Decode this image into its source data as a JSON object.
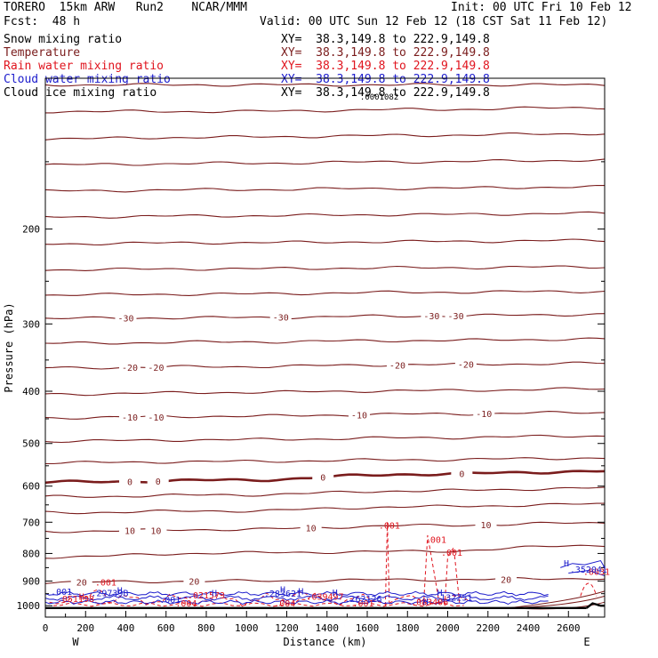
{
  "header": {
    "model": "TORERO  15km ARW   Run2    NCAR/MMM",
    "init": "Init: 00 UTC Fri 10 Feb 12",
    "fcst": "Fcst:  48 h",
    "valid": "Valid: 00 UTC Sun 12 Feb 12 (18 CST Sat 11 Feb 12)"
  },
  "fields": [
    {
      "name": "Snow mixing ratio",
      "xy": "XY=  38.3,149.8 to 222.9,149.8",
      "color": "#000000"
    },
    {
      "name": "Temperature",
      "xy": "XY=  38.3,149.8 to 222.9,149.8",
      "color": "#7a1c1c"
    },
    {
      "name": "Rain water mixing ratio",
      "xy": "XY=  38.3,149.8 to 222.9,149.8",
      "color": "#e0141e"
    },
    {
      "name": "Cloud water mixing ratio",
      "xy": "XY=  38.3,149.8 to 222.9,149.8",
      "color": "#1c1ccc"
    },
    {
      "name": "Cloud ice mixing ratio",
      "xy": "XY=  38.3,149.8 to 222.9,149.8",
      "color": "#000000"
    }
  ],
  "chart_data": {
    "type": "contour-cross-section",
    "xlabel": "Distance (km)",
    "ylabel": "Pressure (hPa)",
    "xlim": [
      0,
      2780
    ],
    "ylim": [
      1050,
      105
    ],
    "y_log": true,
    "x_ticks": [
      0,
      200,
      400,
      600,
      800,
      1000,
      1200,
      1400,
      1600,
      1800,
      2000,
      2200,
      2400,
      2600
    ],
    "y_ticks": [
      200,
      300,
      400,
      500,
      600,
      700,
      800,
      900,
      1000
    ],
    "x_end_labels": [
      "W",
      "E"
    ],
    "isotherms": [
      {
        "p": [
          108,
          108,
          108,
          108
        ]
      },
      {
        "p": [
          121,
          121,
          120,
          119
        ]
      },
      {
        "p": [
          136,
          135,
          134,
          133
        ]
      },
      {
        "p": [
          152,
          151,
          150,
          149
        ]
      },
      {
        "p": [
          170,
          169,
          168,
          167
        ]
      },
      {
        "p": [
          190,
          189,
          188,
          187
        ]
      },
      {
        "p": [
          213,
          212,
          211,
          210
        ]
      },
      {
        "p": [
          238,
          237,
          236,
          235
        ]
      },
      {
        "p": [
          265,
          264,
          262,
          261
        ]
      },
      {
        "p": [
          293,
          292,
          290,
          288
        ],
        "label": "-30",
        "label_x": [
          400,
          1170,
          1920,
          2040
        ]
      },
      {
        "p": [
          326,
          324,
          322,
          320
        ]
      },
      {
        "p": [
          362,
          360,
          357,
          355
        ],
        "label": "-20",
        "label_x": [
          420,
          550,
          1750,
          2090
        ]
      },
      {
        "p": [
          405,
          402,
          399,
          396
        ]
      },
      {
        "p": [
          448,
          445,
          441,
          438
        ],
        "label": "-10",
        "label_x": [
          420,
          550,
          1560,
          2180
        ]
      },
      {
        "p": [
          495,
          492,
          488,
          484
        ]
      },
      {
        "p": [
          543,
          540,
          536,
          532
        ]
      },
      {
        "p": [
          590,
          585,
          570,
          563
        ],
        "label": "0",
        "label_x": [
          420,
          560,
          1380,
          2070
        ],
        "bold": true
      },
      {
        "p": [
          628,
          623,
          612,
          605
        ]
      },
      {
        "p": [
          672,
          667,
          655,
          648
        ]
      },
      {
        "p": [
          728,
          722,
          710,
          702
        ],
        "label": "10",
        "label_x": [
          420,
          550,
          1320,
          2190
        ]
      },
      {
        "p": [
          812,
          798,
          793,
          772
        ]
      },
      {
        "p": [
          905,
          900,
          895,
          890
        ],
        "label": "20",
        "label_x": [
          180,
          740,
          2290
        ]
      }
    ],
    "rain_labels": [
      {
        "x": 1710,
        "p": 720,
        "text": ".001"
      },
      {
        "x": 1940,
        "p": 765,
        "text": ".001"
      },
      {
        "x": 2020,
        "p": 808,
        "text": ".001"
      },
      {
        "x": 300,
        "p": 918,
        "text": ".001"
      },
      {
        "x": 150,
        "p": 985,
        "text": ".051198"
      },
      {
        "x": 800,
        "p": 970,
        "text": ".021573"
      },
      {
        "x": 700,
        "p": 1003,
        "text": ".004"
      },
      {
        "x": 1390,
        "p": 975,
        "text": ".039497"
      },
      {
        "x": 1190,
        "p": 1003,
        "text": ".004"
      },
      {
        "x": 1580,
        "p": 1003,
        "text": ".001"
      },
      {
        "x": 1910,
        "p": 998,
        "text": ".083406"
      },
      {
        "x": 2740,
        "p": 876,
        "text": ".0031"
      }
    ],
    "cloud_labels": [
      {
        "x": 80,
        "p": 955,
        "text": ".001"
      },
      {
        "x": 320,
        "p": 960,
        "text": ".29739B"
      },
      {
        "x": 1180,
        "p": 962,
        "text": ".283621"
      },
      {
        "x": 1580,
        "p": 985,
        "text": ".262126"
      },
      {
        "x": 2030,
        "p": 978,
        "text": ".132251"
      },
      {
        "x": 2700,
        "p": 868,
        "text": ".352041"
      },
      {
        "x": 620,
        "p": 988,
        "text": ".001"
      }
    ],
    "h_marks": [
      {
        "x": 370,
        "p": 950,
        "color": "#1c1ccc"
      },
      {
        "x": 180,
        "p": 975,
        "color": "#e0141e"
      },
      {
        "x": 840,
        "p": 960,
        "color": "#1c1ccc"
      },
      {
        "x": 1180,
        "p": 945,
        "color": "#1c1ccc"
      },
      {
        "x": 1270,
        "p": 953,
        "color": "#1c1ccc"
      },
      {
        "x": 1440,
        "p": 958,
        "color": "#1c1ccc"
      },
      {
        "x": 1890,
        "p": 995,
        "color": "#1c1ccc"
      },
      {
        "x": 1960,
        "p": 958,
        "color": "#1c1ccc"
      },
      {
        "x": 2590,
        "p": 846,
        "color": "#1c1ccc"
      }
    ],
    "snow_label": {
      "x": 1660,
      "p": 115,
      "text": ".0001082"
    }
  }
}
